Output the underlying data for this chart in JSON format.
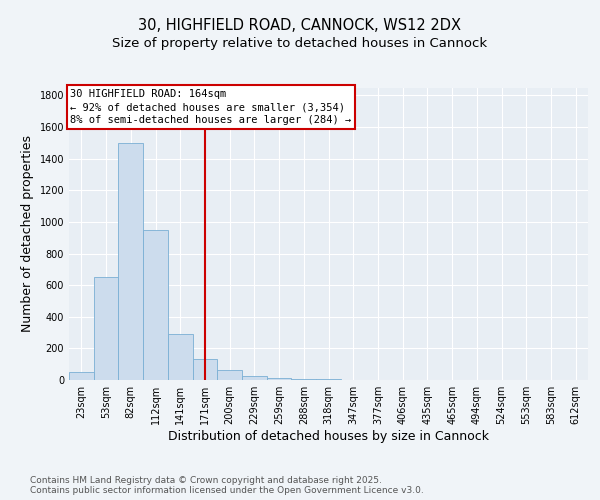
{
  "title_line1": "30, HIGHFIELD ROAD, CANNOCK, WS12 2DX",
  "title_line2": "Size of property relative to detached houses in Cannock",
  "xlabel": "Distribution of detached houses by size in Cannock",
  "ylabel": "Number of detached properties",
  "categories": [
    "23sqm",
    "53sqm",
    "82sqm",
    "112sqm",
    "141sqm",
    "171sqm",
    "200sqm",
    "229sqm",
    "259sqm",
    "288sqm",
    "318sqm",
    "347sqm",
    "377sqm",
    "406sqm",
    "435sqm",
    "465sqm",
    "494sqm",
    "524sqm",
    "553sqm",
    "583sqm",
    "612sqm"
  ],
  "values": [
    50,
    650,
    1500,
    950,
    290,
    130,
    65,
    25,
    10,
    5,
    5,
    3,
    2,
    2,
    1,
    1,
    1,
    0,
    0,
    0,
    0
  ],
  "bar_color": "#ccdced",
  "bar_edge_color": "#7aafd4",
  "vline_x_index": 5,
  "vline_color": "#cc0000",
  "annotation_text": "30 HIGHFIELD ROAD: 164sqm\n← 92% of detached houses are smaller (3,354)\n8% of semi-detached houses are larger (284) →",
  "annotation_box_color": "#cc0000",
  "ylim": [
    0,
    1850
  ],
  "yticks": [
    0,
    200,
    400,
    600,
    800,
    1000,
    1200,
    1400,
    1600,
    1800
  ],
  "bg_color": "#f0f4f8",
  "plot_bg_color": "#e8eef4",
  "grid_color": "#ffffff",
  "footer_text": "Contains HM Land Registry data © Crown copyright and database right 2025.\nContains public sector information licensed under the Open Government Licence v3.0.",
  "title_fontsize": 10.5,
  "subtitle_fontsize": 9.5,
  "axis_label_fontsize": 9,
  "tick_fontsize": 7,
  "annotation_fontsize": 7.5,
  "footer_fontsize": 6.5
}
